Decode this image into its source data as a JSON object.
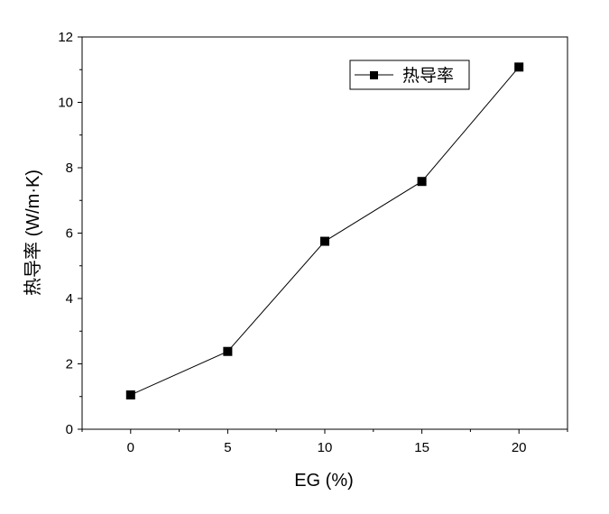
{
  "chart_data": {
    "type": "line",
    "xlabel": "EG (%)",
    "ylabel": "热导率 (W/m·K)",
    "xlim": [
      -2.5,
      22.5
    ],
    "ylim": [
      0,
      12
    ],
    "x_ticks": [
      "0",
      "5",
      "10",
      "15",
      "20"
    ],
    "y_ticks": [
      "0",
      "2",
      "4",
      "6",
      "8",
      "10",
      "12"
    ],
    "series": [
      {
        "name": "热导率",
        "marker": "square",
        "color": "#000000",
        "x": [
          0,
          5,
          10,
          15,
          20
        ],
        "y": [
          1.05,
          2.38,
          5.75,
          7.58,
          11.08
        ]
      }
    ],
    "legend": {
      "position": "top-right",
      "label": "热导率"
    },
    "grid": false
  }
}
